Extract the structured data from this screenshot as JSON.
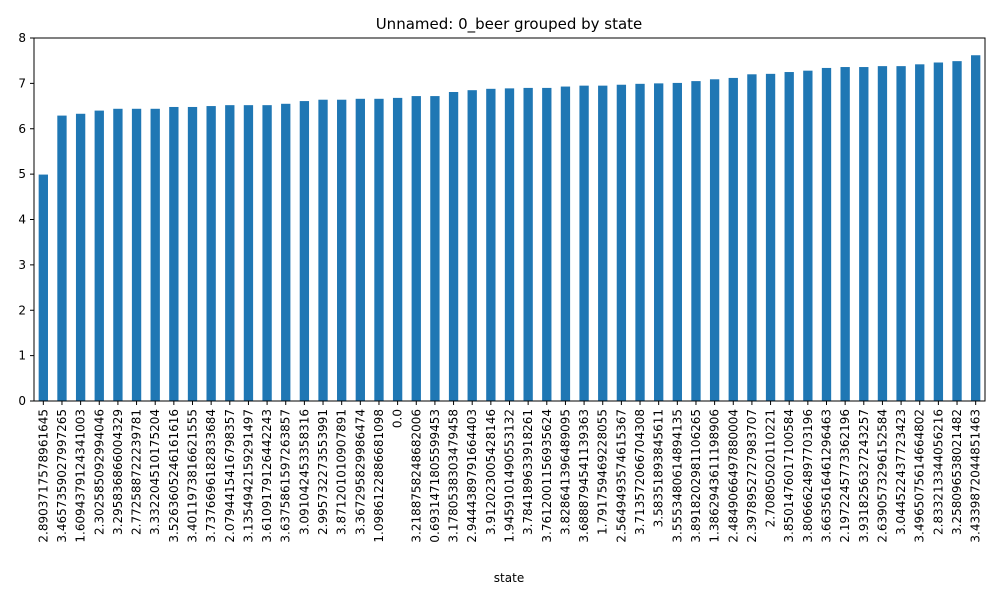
{
  "chart_data": {
    "type": "bar",
    "title": "Unnamed: 0_beer grouped by state",
    "xlabel": "state",
    "ylabel": "",
    "ylim": [
      0,
      8
    ],
    "yticks": [
      0,
      1,
      2,
      3,
      4,
      5,
      6,
      7,
      8
    ],
    "grid": false,
    "legend": "none",
    "bar_color": "#1f77b4",
    "categories": [
      "2.8903717578961645",
      "3.4657359027997265",
      "1.6094379124341003",
      "2.302585092994046",
      "3.295836866004329",
      "2.772588722239781",
      "3.332204510175204",
      "3.5263605246161616",
      "3.4011973816621555",
      "3.7376696182833684",
      "2.0794415416798357",
      "3.1354942159291497",
      "3.6109179126442243",
      "3.6375861597263857",
      "3.091042453358316",
      "2.995732273553991",
      "3.871201010907891",
      "3.367295829986474",
      "1.0986122886681098",
      "0.0",
      "3.2188758248682006",
      "0.6931471805599453",
      "3.1780538303479458",
      "2.9444389791664403",
      "3.912023005428146",
      "1.9459101490553132",
      "3.784189633918261",
      "3.7612001156935624",
      "3.828641396489095",
      "3.6888794541139363",
      "1.791759469228055",
      "2.5649493574615367",
      "3.713572066704308",
      "3.58351893845611",
      "3.5553480614894135",
      "3.8918202981106265",
      "1.3862943611198906",
      "2.4849066497880004",
      "2.3978952727983707",
      "2.70805020110221",
      "3.8501476017100584",
      "3.8066624897703196",
      "3.6635616461296463",
      "2.1972245773362196",
      "3.9318256327243257",
      "2.6390573296152584",
      "3.044522437723423",
      "3.4965075614664802",
      "2.833213344056216",
      "3.258096538021482",
      "3.4339872044851463"
    ],
    "values": [
      4.99,
      6.29,
      6.33,
      6.4,
      6.44,
      6.44,
      6.44,
      6.48,
      6.48,
      6.5,
      6.52,
      6.52,
      6.52,
      6.55,
      6.61,
      6.64,
      6.64,
      6.66,
      6.66,
      6.68,
      6.72,
      6.72,
      6.81,
      6.85,
      6.88,
      6.89,
      6.9,
      6.9,
      6.93,
      6.95,
      6.95,
      6.97,
      6.99,
      7.0,
      7.01,
      7.05,
      7.09,
      7.12,
      7.2,
      7.21,
      7.25,
      7.28,
      7.34,
      7.36,
      7.36,
      7.38,
      7.38,
      7.42,
      7.46,
      7.49,
      7.62
    ]
  }
}
